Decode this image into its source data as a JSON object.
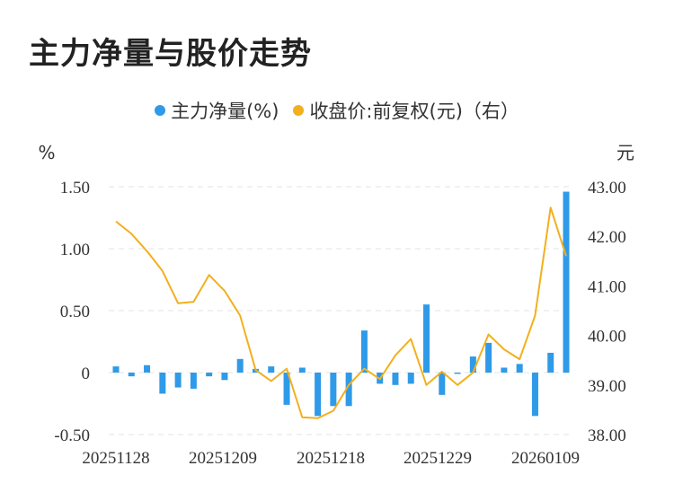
{
  "title": "主力净量与股价走势",
  "colors": {
    "bar": "#2f9ae8",
    "line": "#f2b01e",
    "grid": "#e3e3e3"
  },
  "chart_data": {
    "type": "bar+line",
    "title": "主力净量与股价走势",
    "legend_position": "top",
    "left_axis": {
      "unit": "%",
      "ticks": [
        "1.50",
        "1.00",
        "0.50",
        "0",
        "-0.50"
      ],
      "ylim": [
        -0.5,
        1.5
      ]
    },
    "right_axis": {
      "unit": "元",
      "ticks": [
        "43.00",
        "42.00",
        "41.00",
        "40.00",
        "39.00",
        "38.00"
      ],
      "ylim": [
        38.0,
        43.0
      ]
    },
    "x_tick_labels": [
      "20251128",
      "20251209",
      "20251218",
      "20251229",
      "20260109"
    ],
    "series": [
      {
        "name": "主力净量(%)",
        "type": "bar",
        "axis": "left",
        "values": [
          0.05,
          -0.03,
          0.06,
          -0.17,
          -0.12,
          -0.13,
          -0.03,
          -0.06,
          0.11,
          0.03,
          0.05,
          -0.26,
          0.04,
          -0.35,
          -0.27,
          -0.27,
          0.34,
          -0.09,
          -0.1,
          -0.09,
          0.55,
          -0.18,
          -0.01,
          0.13,
          0.24,
          0.04,
          0.07,
          -0.35,
          0.16,
          1.46
        ]
      },
      {
        "name": "收盘价:前复权(元)（右）",
        "type": "line",
        "axis": "right",
        "values": [
          42.3,
          42.05,
          41.7,
          41.3,
          40.65,
          40.68,
          41.22,
          40.9,
          40.4,
          39.3,
          39.08,
          39.33,
          38.35,
          38.33,
          38.48,
          39.0,
          39.33,
          39.12,
          39.6,
          39.93,
          39.0,
          39.27,
          39.0,
          39.25,
          40.02,
          39.72,
          39.52,
          40.4,
          42.58,
          41.6
        ]
      }
    ]
  }
}
